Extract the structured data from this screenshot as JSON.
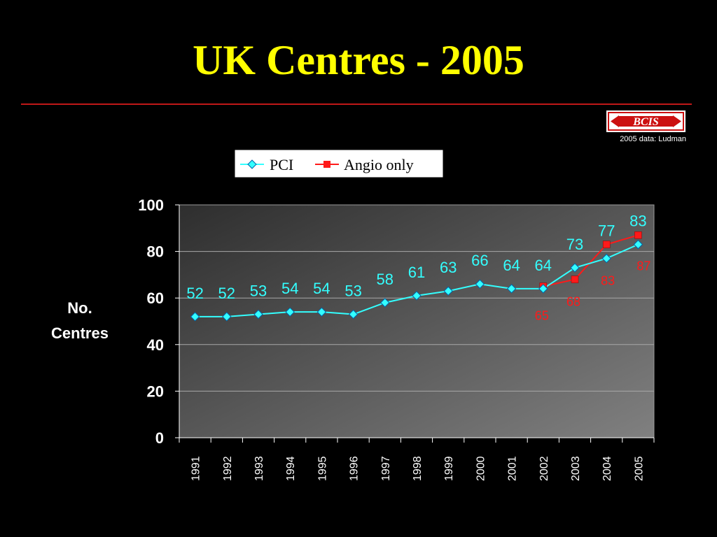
{
  "slide": {
    "title": "UK Centres - 2005",
    "source_note": "2005 data: Ludman",
    "logo_text": "BCIS"
  },
  "colors": {
    "background": "#000000",
    "title": "#ffff00",
    "rule": "#c01818",
    "pci": "#33ffff",
    "angio": "#ff1a1a"
  },
  "chart_data": {
    "type": "line",
    "title": "",
    "xlabel": "",
    "ylabel": "No. Centres",
    "ylabel_lines": [
      "No.",
      "Centres"
    ],
    "ylim": [
      0,
      100
    ],
    "yticks": [
      0,
      20,
      40,
      60,
      80,
      100
    ],
    "grid": true,
    "legend_placement": "top-center",
    "categories": [
      "1991",
      "1992",
      "1993",
      "1994",
      "1995",
      "1996",
      "1997",
      "1998",
      "1999",
      "2000",
      "2001",
      "2002",
      "2003",
      "2004",
      "2005"
    ],
    "series": [
      {
        "name": "PCI",
        "marker": "diamond",
        "values": [
          52,
          52,
          53,
          54,
          54,
          53,
          58,
          61,
          63,
          66,
          64,
          64,
          73,
          77,
          83
        ],
        "labels": [
          "52",
          "52",
          "53",
          "54",
          "54",
          "53",
          "58",
          "61",
          "63",
          "66",
          "64",
          "64",
          "73",
          "77",
          "83"
        ]
      },
      {
        "name": "Angio only",
        "marker": "square",
        "values": [
          null,
          null,
          null,
          null,
          null,
          null,
          null,
          null,
          null,
          null,
          null,
          65,
          68,
          83,
          87
        ],
        "labels": [
          null,
          null,
          null,
          null,
          null,
          null,
          null,
          null,
          null,
          null,
          null,
          "65",
          "68",
          "83",
          "87"
        ]
      }
    ]
  }
}
